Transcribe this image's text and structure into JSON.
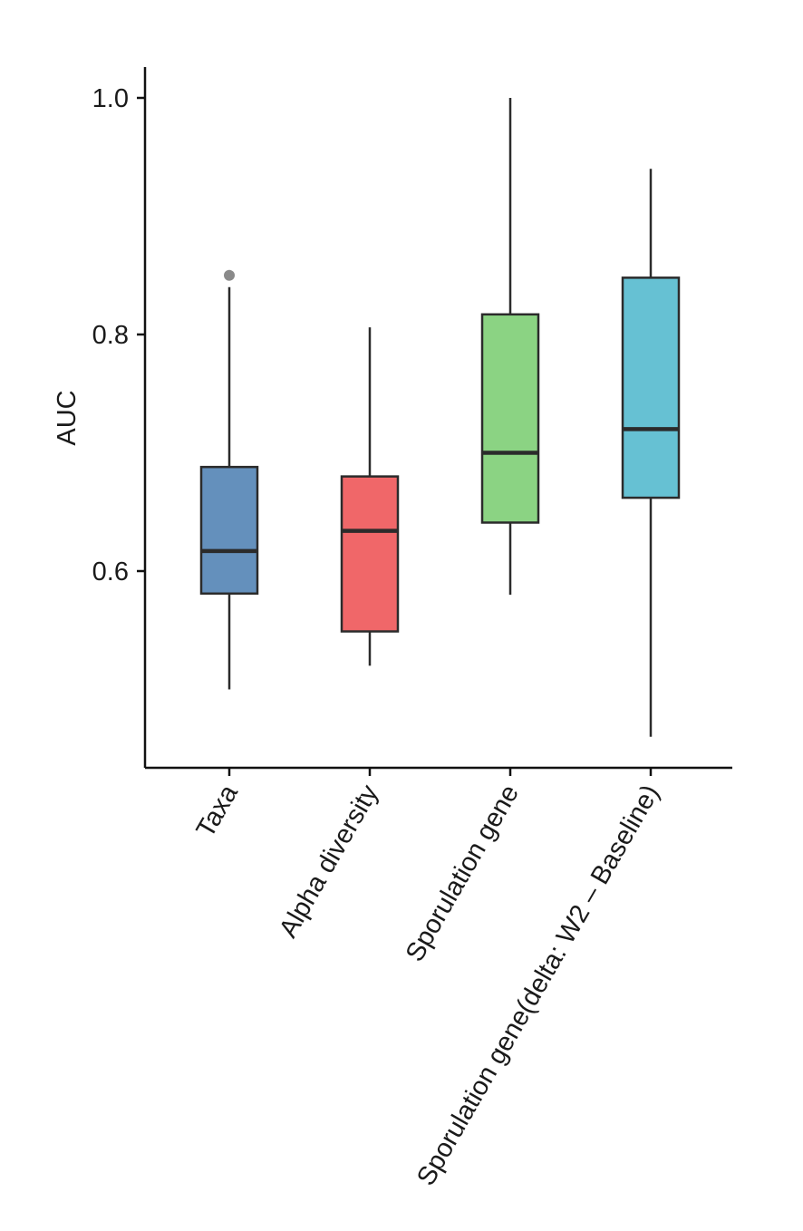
{
  "chart_data": {
    "type": "box",
    "title": "",
    "xlabel": "",
    "ylabel": "AUC",
    "ylim": [
      0.445,
      1.025
    ],
    "yticks": [
      {
        "value": 0.6,
        "label": "0.6"
      },
      {
        "value": 0.8,
        "label": "0.8"
      },
      {
        "value": 1.0,
        "label": "1.0"
      }
    ],
    "grid": false,
    "legend": "none",
    "categories": [
      "Taxa",
      "Alpha diversity",
      "Sporulation gene",
      "Sporulation gene(delta: W2 – Baseline)"
    ],
    "boxes": [
      {
        "category": "Taxa",
        "color": "#6490bc",
        "whisker_low": 0.5,
        "q1": 0.581,
        "median": 0.617,
        "q3": 0.688,
        "whisker_high": 0.84,
        "outliers": [
          0.85
        ]
      },
      {
        "category": "Alpha diversity",
        "color": "#f06769",
        "whisker_low": 0.52,
        "q1": 0.549,
        "median": 0.634,
        "q3": 0.68,
        "whisker_high": 0.806,
        "outliers": []
      },
      {
        "category": "Sporulation gene",
        "color": "#8bd383",
        "whisker_low": 0.58,
        "q1": 0.641,
        "median": 0.7,
        "q3": 0.817,
        "whisker_high": 1.0,
        "outliers": []
      },
      {
        "category": "Sporulation gene(delta: W2 – Baseline)",
        "color": "#66c1d3",
        "whisker_low": 0.46,
        "q1": 0.662,
        "median": 0.72,
        "q3": 0.848,
        "whisker_high": 0.94,
        "outliers": []
      }
    ],
    "colors": {
      "outline": "#2b2b2b",
      "axis": "#111111",
      "outlier": "#8a8a8a"
    }
  }
}
